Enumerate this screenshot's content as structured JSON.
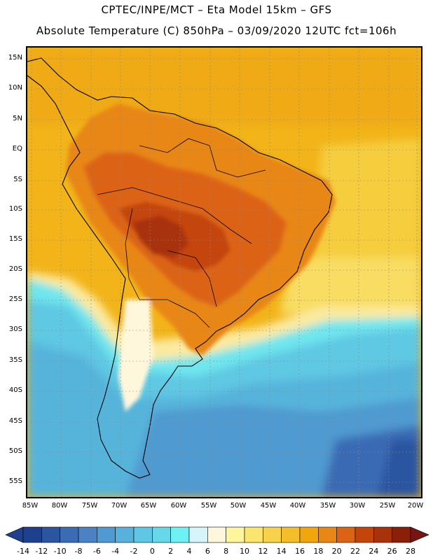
{
  "title": {
    "line1": "CPTEC/INPE/MCT –  Eta Model 15km – GFS",
    "line2": "Absolute Temperature (C) 850hPa – 03/09/2020 12UTC fct=106h"
  },
  "latitude_labels": [
    "15N",
    "10N",
    "5N",
    "EQ",
    "5S",
    "10S",
    "15S",
    "20S",
    "25S",
    "30S",
    "35S",
    "40S",
    "45S",
    "50S",
    "55S"
  ],
  "longitude_labels": [
    "85W",
    "80W",
    "75W",
    "70W",
    "65W",
    "60W",
    "55W",
    "50W",
    "45W",
    "40W",
    "35W",
    "30W",
    "25W",
    "20W"
  ],
  "colorbar": {
    "tick_labels": [
      "-14",
      "-12",
      "-10",
      "-8",
      "-6",
      "-4",
      "-2",
      "0",
      "2",
      "4",
      "6",
      "8",
      "10",
      "12",
      "14",
      "16",
      "18",
      "20",
      "22",
      "24",
      "26",
      "28"
    ],
    "colors": [
      "#1f3f8f",
      "#2c55a0",
      "#3b6bb4",
      "#4a82c4",
      "#4f9ad0",
      "#57b1db",
      "#5fc6e3",
      "#66d8ea",
      "#6ff0f5",
      "#d4f6fb",
      "#fff7dc",
      "#fff59a",
      "#fbe56e",
      "#f8d24d",
      "#f3be2a",
      "#f0a60c",
      "#e88616",
      "#dc6313",
      "#c4450c",
      "#a8320a",
      "#8a200a"
    ],
    "under_color": "#1f3f8f",
    "over_color": "#7a1414"
  }
}
